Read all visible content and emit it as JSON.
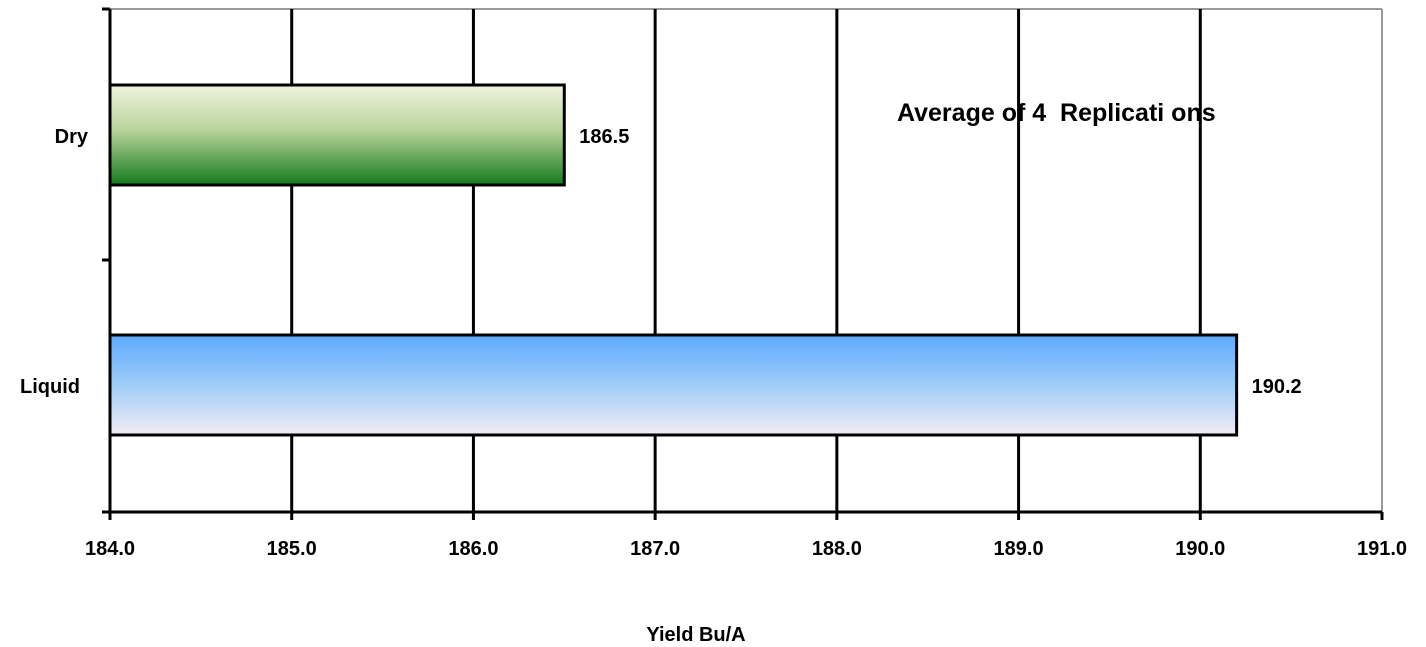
{
  "chart_data": {
    "type": "bar",
    "orientation": "horizontal",
    "categories": [
      "Dry",
      "Liquid"
    ],
    "values": [
      186.5,
      190.2
    ],
    "data_labels": [
      "186.5",
      "190.2"
    ],
    "annotation": "Average of 4  Replicati ons",
    "xlabel": "Yield Bu/A",
    "ylabel": "",
    "xlim": [
      184.0,
      191.0
    ],
    "xticks": [
      "184.0",
      "185.0",
      "186.0",
      "187.0",
      "188.0",
      "189.0",
      "190.0",
      "191.0"
    ],
    "grid": true,
    "bar_colors": {
      "Dry": [
        "#eef3df",
        "#b9d49a",
        "#137a1c"
      ],
      "Liquid": [
        "#5ea9ff",
        "#9fcdf7",
        "#f4ecf5"
      ]
    }
  }
}
